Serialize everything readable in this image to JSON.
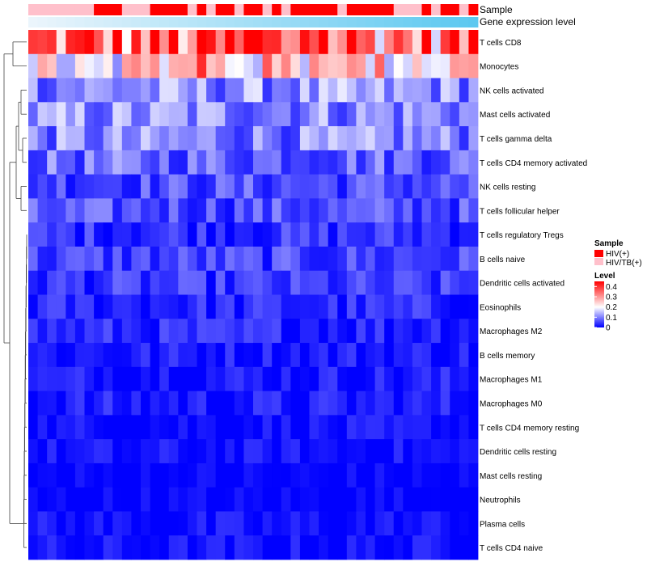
{
  "chart_data": {
    "type": "heatmap",
    "title": "",
    "annotation_tracks": [
      {
        "name": "Sample",
        "label": "Sample"
      },
      {
        "name": "Gene expression level",
        "label": "Gene expression level"
      }
    ],
    "sample_annotation": [
      "HIV/TB(+)",
      "HIV/TB(+)",
      "HIV/TB(+)",
      "HIV/TB(+)",
      "HIV/TB(+)",
      "HIV/TB(+)",
      "HIV/TB(+)",
      "HIV(+)",
      "HIV(+)",
      "HIV(+)",
      "HIV/TB(+)",
      "HIV/TB(+)",
      "HIV/TB(+)",
      "HIV(+)",
      "HIV(+)",
      "HIV(+)",
      "HIV(+)",
      "HIV/TB(+)",
      "HIV(+)",
      "HIV/TB(+)",
      "HIV(+)",
      "HIV(+)",
      "HIV/TB(+)",
      "HIV(+)",
      "HIV(+)",
      "HIV/TB(+)",
      "HIV(+)",
      "HIV/TB(+)",
      "HIV(+)",
      "HIV(+)",
      "HIV(+)",
      "HIV(+)",
      "HIV(+)",
      "HIV/TB(+)",
      "HIV(+)",
      "HIV(+)",
      "HIV(+)",
      "HIV(+)",
      "HIV(+)",
      "HIV/TB(+)",
      "HIV/TB(+)",
      "HIV/TB(+)",
      "HIV(+)",
      "HIV/TB(+)",
      "HIV(+)",
      "HIV(+)",
      "HIV/TB(+)",
      "HIV(+)"
    ],
    "expression_level_range": [
      0,
      1
    ],
    "rows": [
      "T cells CD8",
      "Monocytes",
      "NK cells activated",
      "Mast cells activated",
      "T cells gamma delta",
      "T cells CD4 memory activated",
      "NK cells resting",
      "T cells follicular helper",
      "T cells regulatory  Tregs",
      "B cells naive",
      "Dendritic cells activated",
      "Eosinophils",
      "Macrophages M2",
      "B cells memory",
      "Macrophages M1",
      "Macrophages M0",
      "T cells CD4 memory resting",
      "Dendritic cells resting",
      "Mast cells resting",
      "Neutrophils",
      "Plasma cells",
      "T cells CD4 naive"
    ],
    "row_means": [
      0.34,
      0.24,
      0.11,
      0.11,
      0.1,
      0.08,
      0.06,
      0.06,
      0.04,
      0.05,
      0.04,
      0.03,
      0.03,
      0.02,
      0.02,
      0.02,
      0.01,
      0.01,
      0.0,
      0.0,
      0.01,
      0.01
    ],
    "n_columns": 48,
    "color_scale": {
      "min": 0,
      "max": 0.45,
      "ticks": [
        0,
        0.1,
        0.2,
        0.3,
        0.4
      ],
      "tick_labels": [
        "0",
        "0.1",
        "0.2",
        "0.3",
        "0.4"
      ],
      "low_color": "#0000ff",
      "mid_color": "#ffffff",
      "mid_value": 0.2,
      "high_color": "#ff0000"
    },
    "legend_sample": {
      "title": "Sample",
      "entries": [
        {
          "label": "HIV(+)",
          "color": "#ff0000"
        },
        {
          "label": "HIV/TB(+)",
          "color": "#ffc0cb"
        }
      ]
    },
    "legend_level": {
      "title": "Level"
    },
    "dendrogram": "hierarchical clustering of rows"
  }
}
